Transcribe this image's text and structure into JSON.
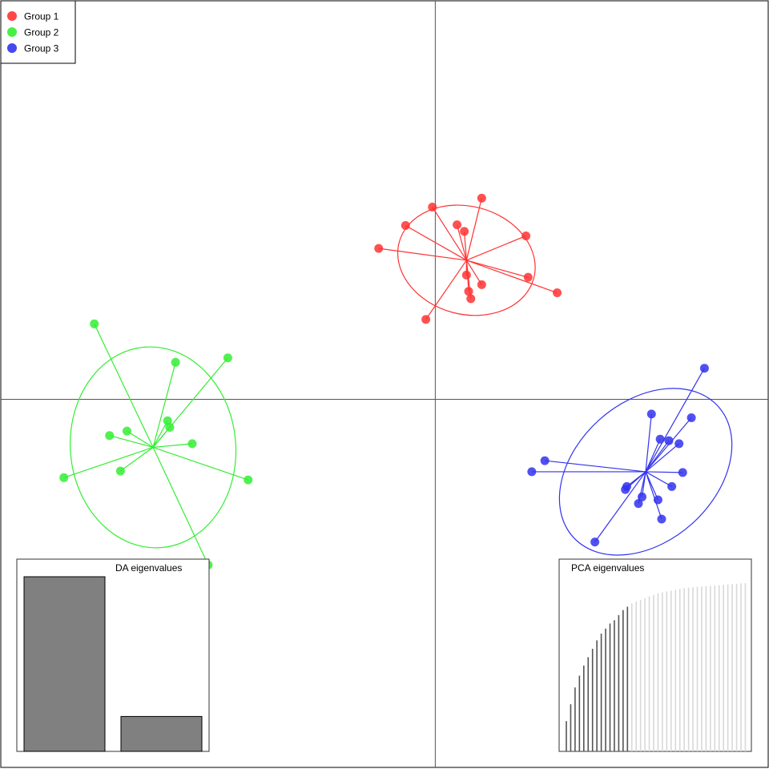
{
  "chart_data": {
    "type": "scatter",
    "legend": {
      "placement": "top-left",
      "entries": [
        {
          "label": "Group 1",
          "color": "#ff3333"
        },
        {
          "label": "Group 2",
          "color": "#33ee33"
        },
        {
          "label": "Group 3",
          "color": "#3333ee"
        }
      ]
    },
    "axes": {
      "xlim": [
        -6,
        4.6
      ],
      "ylim": [
        -5,
        5.4
      ],
      "cross_at": [
        0,
        0
      ],
      "grid": false
    },
    "groups": [
      {
        "name": "Group 1",
        "color": "#ff3333",
        "centroid": [
          0.43,
          1.88
        ],
        "ellipse": {
          "rx": 0.96,
          "ry": 0.73,
          "angle_deg": 15
        },
        "points": [
          [
            0.64,
            2.72
          ],
          [
            -0.04,
            2.6
          ],
          [
            0.3,
            2.36
          ],
          [
            0.4,
            2.27
          ],
          [
            -0.41,
            2.35
          ],
          [
            1.25,
            2.21
          ],
          [
            -0.78,
            2.04
          ],
          [
            0.43,
            1.68
          ],
          [
            1.28,
            1.65
          ],
          [
            0.64,
            1.55
          ],
          [
            0.46,
            1.46
          ],
          [
            0.49,
            1.36
          ],
          [
            1.68,
            1.44
          ],
          [
            -0.13,
            1.08
          ]
        ]
      },
      {
        "name": "Group 2",
        "color": "#33ee33",
        "centroid": [
          -3.89,
          -0.65
        ],
        "ellipse": {
          "rx": 1.14,
          "ry": 1.36,
          "angle_deg": -5
        },
        "points": [
          [
            -4.7,
            1.02
          ],
          [
            -3.58,
            0.5
          ],
          [
            -2.86,
            0.56
          ],
          [
            -3.69,
            -0.29
          ],
          [
            -3.66,
            -0.38
          ],
          [
            -4.25,
            -0.43
          ],
          [
            -4.49,
            -0.49
          ],
          [
            -3.35,
            -0.6
          ],
          [
            -5.12,
            -1.06
          ],
          [
            -4.34,
            -0.97
          ],
          [
            -2.58,
            -1.09
          ],
          [
            -3.13,
            -2.24
          ]
        ]
      },
      {
        "name": "Group 3",
        "color": "#3333ee",
        "centroid": [
          2.9,
          -0.98
        ],
        "ellipse": {
          "rx": 0.96,
          "ry": 1.32,
          "angle_deg": 48
        },
        "points": [
          [
            3.71,
            0.42
          ],
          [
            2.98,
            -0.2
          ],
          [
            3.53,
            -0.25
          ],
          [
            3.1,
            -0.54
          ],
          [
            3.22,
            -0.56
          ],
          [
            3.36,
            -0.6
          ],
          [
            1.51,
            -0.83
          ],
          [
            1.33,
            -0.98
          ],
          [
            3.41,
            -0.99
          ],
          [
            3.26,
            -1.18
          ],
          [
            2.64,
            -1.18
          ],
          [
            2.62,
            -1.22
          ],
          [
            2.85,
            -1.32
          ],
          [
            3.07,
            -1.36
          ],
          [
            2.8,
            -1.41
          ],
          [
            3.12,
            -1.62
          ],
          [
            2.2,
            -1.93
          ]
        ]
      }
    ],
    "insets": [
      {
        "title": "DA eigenvalues",
        "type": "bar",
        "values": [
          100,
          20
        ],
        "colors": [
          "#808080",
          "#808080"
        ]
      },
      {
        "title": "PCA eigenvalues",
        "type": "spike",
        "values": [
          18,
          28,
          38,
          45,
          51,
          56,
          61,
          66,
          70,
          73,
          76,
          78,
          81,
          84,
          86,
          88,
          89,
          90,
          91,
          92,
          93,
          94,
          94.5,
          95,
          95.5,
          96,
          96.5,
          97,
          97.3,
          97.6,
          97.8,
          98,
          98.2,
          98.4,
          98.6,
          98.8,
          99,
          99.2,
          99.4,
          99.6,
          99.8,
          100
        ],
        "retained": 15,
        "retained_color": "#555555",
        "other_color": "#d8d8d8"
      }
    ]
  }
}
